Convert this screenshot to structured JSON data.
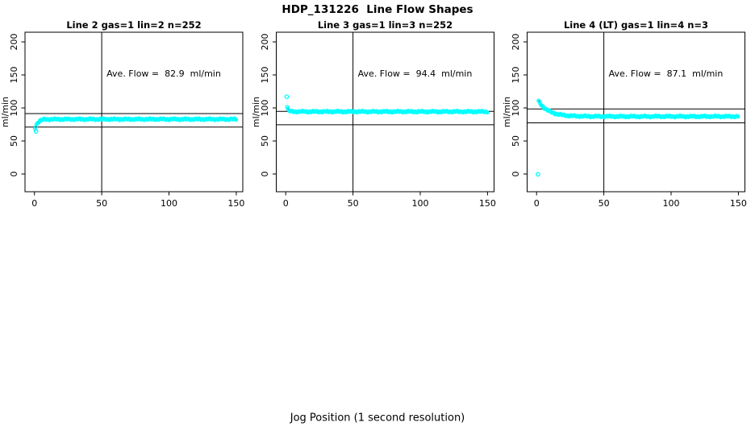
{
  "figure": {
    "title": "HDP_131226  Line Flow Shapes",
    "xlabel": "Jog Position (1 second resolution)",
    "ylabel": "ml/min",
    "background": "#ffffff",
    "point_color": "#00ffff",
    "axis_color": "#000000"
  },
  "chart_data": [
    {
      "type": "scatter",
      "title": "Line 2 gas=1 lin=2 n=252",
      "annotation": "Ave. Flow =  82.9  ml/min",
      "ave_flow": 82.9,
      "n": 252,
      "xlim": [
        0,
        150
      ],
      "ylim": [
        0,
        200
      ],
      "xticks": [
        0,
        50,
        100,
        150
      ],
      "yticks": [
        0,
        50,
        100,
        150,
        200
      ],
      "ylabel": "ml/min",
      "vline_x": 50,
      "ref_lines": [
        91.5,
        71.0
      ],
      "series": {
        "shape": "rises from ~69 ml/min at start then flat at average",
        "start_x": 0.5,
        "end_x": 150,
        "x_step": 0.6,
        "flat_value": 82.9,
        "start_amp": -14,
        "decay_tau": 2.0
      },
      "outliers": [
        [
          1.2,
          64.5
        ]
      ]
    },
    {
      "type": "scatter",
      "title": "Line 3 gas=1 lin=3 n=252",
      "annotation": "Ave. Flow =  94.4  ml/min",
      "ave_flow": 94.4,
      "n": 252,
      "xlim": [
        0,
        150
      ],
      "ylim": [
        0,
        200
      ],
      "xticks": [
        0,
        50,
        100,
        150
      ],
      "yticks": [
        0,
        50,
        100,
        150,
        200
      ],
      "ylabel": "ml/min",
      "vline_x": 50,
      "ref_lines": [
        94.8,
        74.5
      ],
      "series": {
        "shape": "brief high start (~102) then flat at average",
        "start_x": 1.0,
        "end_x": 150,
        "x_step": 0.6,
        "flat_value": 94.4,
        "start_amp": 8,
        "decay_tau": 0.8
      },
      "outliers": [
        [
          0.8,
          117
        ]
      ]
    },
    {
      "type": "scatter",
      "title": "Line 4 (LT) gas=1 lin=4 n=3",
      "annotation": "Ave. Flow =  87.1  ml/min",
      "ave_flow": 87.1,
      "n": 3,
      "xlim": [
        0,
        150
      ],
      "ylim": [
        0,
        200
      ],
      "xticks": [
        0,
        50,
        100,
        150
      ],
      "yticks": [
        0,
        50,
        100,
        150,
        200
      ],
      "ylabel": "ml/min",
      "vline_x": 50,
      "ref_lines": [
        98.5,
        77.5
      ],
      "series": {
        "shape": "starts ~110 ml/min, exponential decay to flat at average",
        "start_x": 1.5,
        "end_x": 150,
        "x_step": 0.6,
        "flat_value": 87.1,
        "start_amp": 23,
        "decay_tau": 7.5
      },
      "outliers": [
        [
          1.0,
          -0.5
        ]
      ]
    }
  ]
}
